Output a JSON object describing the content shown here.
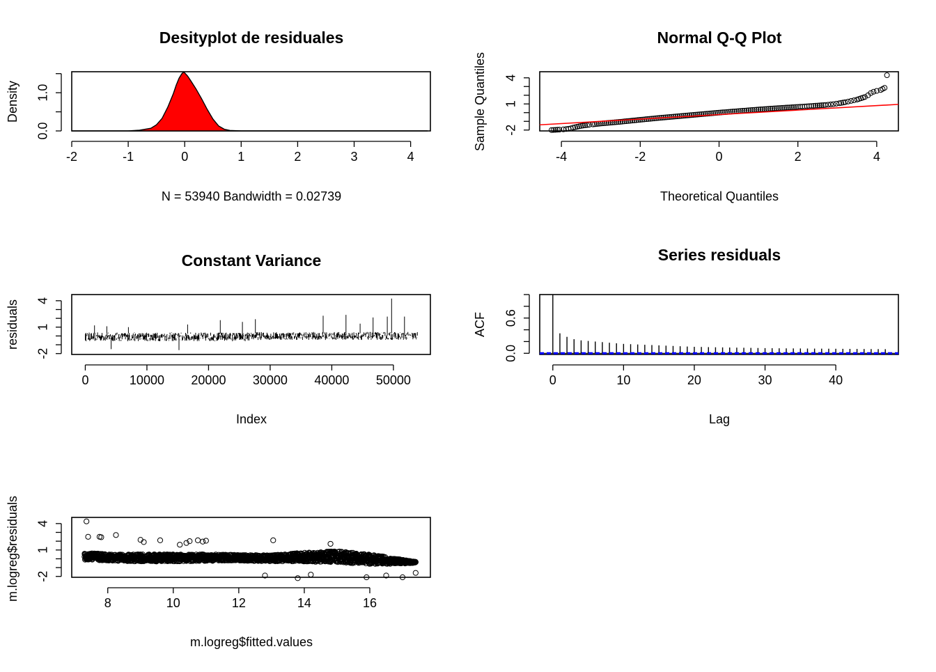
{
  "colors": {
    "density_fill": "#FF0000",
    "qq_line": "#FF0000",
    "acf_band": "#0000FF",
    "ink": "#000000"
  },
  "chart_data": [
    {
      "id": "density",
      "type": "area",
      "title": "Desityplot de residuales",
      "xlabel": "N = 53940   Bandwidth = 0.02739",
      "ylabel": "Density",
      "xlim": [
        -2.0,
        4.35
      ],
      "ylim": [
        0,
        1.55
      ],
      "xticks": [
        "-2",
        "-1",
        "0",
        "1",
        "2",
        "3",
        "4"
      ],
      "yticks": [
        "0.0",
        "1.0"
      ],
      "x": [
        -2.0,
        -1.0,
        -0.8,
        -0.6,
        -0.5,
        -0.4,
        -0.3,
        -0.2,
        -0.15,
        -0.1,
        -0.05,
        -0.02,
        0.0,
        0.05,
        0.1,
        0.2,
        0.3,
        0.4,
        0.5,
        0.6,
        0.7,
        0.8,
        1.0,
        2.0,
        4.3
      ],
      "y": [
        0.0,
        0.002,
        0.02,
        0.07,
        0.16,
        0.33,
        0.62,
        0.98,
        1.2,
        1.38,
        1.5,
        1.54,
        1.52,
        1.44,
        1.33,
        1.1,
        0.84,
        0.56,
        0.31,
        0.13,
        0.045,
        0.012,
        0.002,
        0.0,
        0.0
      ],
      "fill": "#FF0000"
    },
    {
      "id": "qqplot",
      "type": "scatter",
      "title": "Normal Q-Q Plot",
      "xlabel": "Theoretical Quantiles",
      "ylabel": "Sample Quantiles",
      "xlim": [
        -4.55,
        4.55
      ],
      "ylim": [
        -2.1,
        4.7
      ],
      "xticks": [
        "-4",
        "-2",
        "0",
        "2",
        "4"
      ],
      "yticks": [
        "-2",
        "1",
        "4"
      ],
      "reference_line": {
        "from": [
          -4.55,
          -1.4
        ],
        "to": [
          4.55,
          0.95
        ],
        "color": "#FF0000"
      },
      "points": [
        [
          -4.25,
          -2.0
        ],
        [
          -4.05,
          -1.95
        ],
        [
          -3.95,
          -1.92
        ],
        [
          -3.88,
          -1.88
        ],
        [
          -3.82,
          -1.85
        ],
        [
          -3.76,
          -1.8
        ],
        [
          -3.7,
          -1.72
        ],
        [
          -3.6,
          -1.62
        ],
        [
          -3.5,
          -1.52
        ],
        [
          -3.4,
          -1.45
        ],
        [
          -3.3,
          -1.4
        ],
        [
          -3.2,
          -1.35
        ],
        [
          -3.0,
          -1.25
        ],
        [
          -2.5,
          -1.05
        ],
        [
          -2.0,
          -0.82
        ],
        [
          -1.5,
          -0.6
        ],
        [
          -1.0,
          -0.4
        ],
        [
          -0.5,
          -0.2
        ],
        [
          0.0,
          0.0
        ],
        [
          0.5,
          0.18
        ],
        [
          1.0,
          0.36
        ],
        [
          1.5,
          0.52
        ],
        [
          2.0,
          0.66
        ],
        [
          2.4,
          0.78
        ],
        [
          2.7,
          0.88
        ],
        [
          2.9,
          0.98
        ],
        [
          3.05,
          1.08
        ],
        [
          3.2,
          1.2
        ],
        [
          3.35,
          1.35
        ],
        [
          3.5,
          1.5
        ],
        [
          3.6,
          1.65
        ],
        [
          3.7,
          1.8
        ],
        [
          3.78,
          2.0
        ],
        [
          3.85,
          2.25
        ],
        [
          3.92,
          2.4
        ],
        [
          4.0,
          2.5
        ],
        [
          4.1,
          2.6
        ],
        [
          4.2,
          2.85
        ],
        [
          4.26,
          4.3
        ]
      ]
    },
    {
      "id": "constant_variance",
      "type": "line",
      "title": "Constant Variance",
      "xlabel": "Index",
      "ylabel": "residuals",
      "xlim": [
        -2200,
        56000
      ],
      "ylim": [
        -2.1,
        4.7
      ],
      "xticks": [
        "0",
        "10000",
        "20000",
        "30000",
        "40000",
        "50000"
      ],
      "yticks": [
        "-2",
        "1",
        "4"
      ],
      "n": 53940,
      "segments": [
        {
          "x_range": [
            0,
            27000
          ],
          "center": -0.1,
          "spread": 0.5
        },
        {
          "x_range": [
            27000,
            53940
          ],
          "center": 0.0,
          "spread": 0.45
        }
      ],
      "spikes": [
        [
          1500,
          1.2
        ],
        [
          3500,
          1.1
        ],
        [
          4200,
          -1.5
        ],
        [
          7000,
          1.0
        ],
        [
          15200,
          -1.6
        ],
        [
          16600,
          1.3
        ],
        [
          21900,
          1.8
        ],
        [
          25500,
          1.6
        ],
        [
          27600,
          1.9
        ],
        [
          38600,
          2.3
        ],
        [
          42300,
          2.4
        ],
        [
          44600,
          1.4
        ],
        [
          46700,
          2.1
        ],
        [
          49000,
          2.2
        ],
        [
          49700,
          4.25
        ],
        [
          51800,
          2.2
        ]
      ]
    },
    {
      "id": "acf",
      "type": "bar",
      "title": "Series  residuals",
      "xlabel": "Lag",
      "ylabel": "ACF",
      "xlim": [
        -1.85,
        48.85
      ],
      "ylim": [
        -0.02,
        1.0
      ],
      "xticks": [
        "0",
        "10",
        "20",
        "30",
        "40"
      ],
      "yticks": [
        "0.0",
        "0.6"
      ],
      "lags": [
        0,
        1,
        2,
        3,
        4,
        5,
        6,
        7,
        8,
        9,
        10,
        11,
        12,
        13,
        14,
        15,
        16,
        17,
        18,
        19,
        20,
        21,
        22,
        23,
        24,
        25,
        26,
        27,
        28,
        29,
        30,
        31,
        32,
        33,
        34,
        35,
        36,
        37,
        38,
        39,
        40,
        41,
        42,
        43,
        44,
        45,
        46,
        47
      ],
      "values": [
        1.0,
        0.34,
        0.28,
        0.24,
        0.22,
        0.21,
        0.2,
        0.19,
        0.18,
        0.17,
        0.16,
        0.155,
        0.15,
        0.145,
        0.14,
        0.135,
        0.13,
        0.125,
        0.12,
        0.115,
        0.11,
        0.108,
        0.105,
        0.102,
        0.1,
        0.098,
        0.096,
        0.094,
        0.092,
        0.09,
        0.088,
        0.086,
        0.085,
        0.084,
        0.083,
        0.082,
        0.081,
        0.08,
        0.079,
        0.078,
        0.077,
        0.076,
        0.075,
        0.074,
        0.073,
        0.072,
        0.071,
        0.07
      ],
      "confidence_band": 0.0084
    },
    {
      "id": "fitted_vs_residuals",
      "type": "scatter",
      "title": "",
      "xlabel": "m.logreg$fitted.values",
      "ylabel": "m.logreg$residuals",
      "xlim": [
        6.9,
        17.85
      ],
      "ylim": [
        -2.1,
        4.7
      ],
      "xticks": [
        "8",
        "10",
        "12",
        "14",
        "16"
      ],
      "yticks": [
        "-2",
        "1",
        "4"
      ],
      "band": [
        [
          7.3,
          -0.1,
          0.7
        ],
        [
          8.0,
          -0.2,
          0.5
        ],
        [
          9.0,
          -0.3,
          0.5
        ],
        [
          10.0,
          -0.3,
          0.5
        ],
        [
          11.0,
          -0.25,
          0.5
        ],
        [
          12.0,
          -0.2,
          0.45
        ],
        [
          13.0,
          -0.3,
          0.4
        ],
        [
          14.0,
          -0.3,
          0.7
        ],
        [
          15.0,
          -0.4,
          0.9
        ],
        [
          16.0,
          -0.6,
          0.5
        ],
        [
          17.0,
          -0.55,
          -0.1
        ],
        [
          17.4,
          -0.45,
          -0.35
        ]
      ],
      "outliers": [
        [
          7.35,
          4.25
        ],
        [
          7.4,
          2.5
        ],
        [
          7.75,
          2.5
        ],
        [
          7.8,
          2.45
        ],
        [
          8.25,
          2.7
        ],
        [
          9.0,
          2.15
        ],
        [
          9.1,
          1.9
        ],
        [
          9.6,
          2.1
        ],
        [
          10.2,
          1.6
        ],
        [
          10.4,
          1.8
        ],
        [
          10.5,
          2.0
        ],
        [
          10.75,
          2.1
        ],
        [
          10.9,
          1.95
        ],
        [
          11.0,
          2.05
        ],
        [
          13.05,
          2.1
        ],
        [
          14.8,
          1.7
        ],
        [
          12.8,
          -1.9
        ],
        [
          13.8,
          -2.2
        ],
        [
          14.2,
          -1.8
        ],
        [
          15.9,
          -2.1
        ],
        [
          16.5,
          -1.9
        ],
        [
          17.0,
          -2.1
        ],
        [
          17.4,
          -1.6
        ]
      ]
    }
  ]
}
